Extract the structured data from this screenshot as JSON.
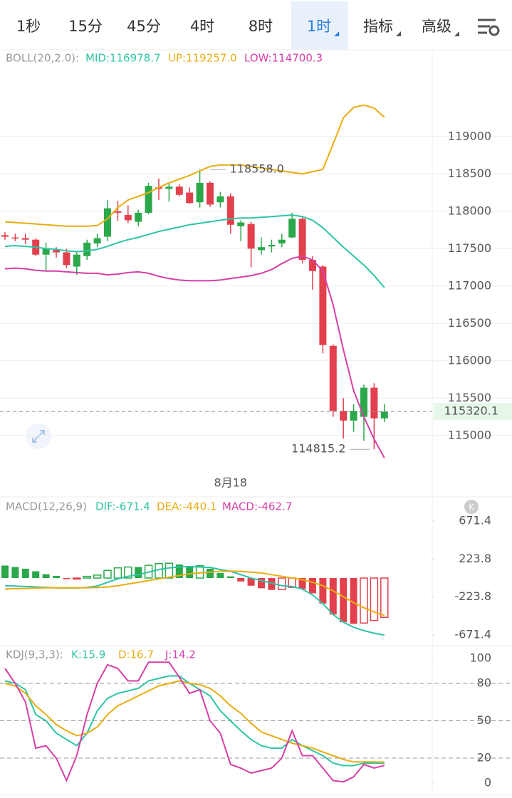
{
  "tabs": [
    {
      "label": "1秒",
      "active": false,
      "dropdown": false
    },
    {
      "label": "15分",
      "active": false,
      "dropdown": false
    },
    {
      "label": "45分",
      "active": false,
      "dropdown": false
    },
    {
      "label": "4时",
      "active": false,
      "dropdown": false
    },
    {
      "label": "8时",
      "active": false,
      "dropdown": false
    },
    {
      "label": "1时",
      "active": true,
      "dropdown": true
    },
    {
      "label": "指标",
      "active": false,
      "dropdown": true
    },
    {
      "label": "高级",
      "active": false,
      "dropdown": true
    }
  ],
  "chart_data": [
    {
      "type": "candlestick",
      "title": "BOLL(20,2.0):",
      "categories": [
        null,
        null,
        null,
        null,
        null,
        null,
        null,
        null,
        null,
        null,
        null,
        null,
        null,
        null,
        null,
        null,
        null,
        null,
        null,
        null,
        null,
        null,
        "8月18",
        null,
        null,
        null,
        null,
        null,
        null,
        null,
        null,
        null,
        null,
        null,
        null,
        null,
        null,
        null
      ],
      "open": [
        117680,
        117650,
        117640,
        117620,
        117420,
        117480,
        117450,
        117260,
        117400,
        117570,
        117660,
        118000,
        117950,
        117860,
        117980,
        118320,
        118300,
        118330,
        118250,
        118120,
        118380,
        118120,
        118200,
        117800,
        117830,
        117480,
        117530,
        117570,
        117650,
        117900,
        117350,
        117260,
        116200,
        115330,
        115200,
        115250,
        115640,
        115230
      ],
      "high": [
        117720,
        117700,
        117700,
        117640,
        117580,
        117520,
        117500,
        117450,
        117620,
        117700,
        118150,
        118140,
        118080,
        118020,
        118380,
        118440,
        118380,
        118360,
        118320,
        118558,
        118400,
        118260,
        118240,
        117880,
        117860,
        117650,
        117620,
        117700,
        117980,
        117920,
        117400,
        117280,
        116220,
        115500,
        115420,
        115680,
        115700,
        115420
      ],
      "low": [
        117620,
        117600,
        117560,
        117400,
        117200,
        117380,
        117240,
        117150,
        117350,
        117520,
        117600,
        117870,
        117840,
        117800,
        117960,
        118150,
        118130,
        118200,
        118100,
        118050,
        118060,
        118050,
        117700,
        117600,
        117250,
        117420,
        117450,
        117520,
        117640,
        117300,
        116950,
        116100,
        115250,
        114960,
        115050,
        114930,
        114815.2,
        115180
      ],
      "close": [
        117660,
        117640,
        117620,
        117420,
        117500,
        117450,
        117280,
        117420,
        117580,
        117640,
        118040,
        117980,
        117880,
        117980,
        118340,
        118300,
        118330,
        118220,
        118110,
        118380,
        118090,
        118200,
        117820,
        117850,
        117500,
        117520,
        117550,
        117620,
        117900,
        117350,
        117200,
        116210,
        115330,
        115200,
        115330,
        115640,
        115230,
        115320.1
      ],
      "up_color": "#2ba84a",
      "down_color": "#e2404d",
      "high_label": "118558.0",
      "low_label": "114815.2",
      "last_label": "115320.1",
      "series": [
        {
          "name": "MID:116978.7",
          "color": "#2ec4a5",
          "values": [
            117530,
            117540,
            117530,
            117520,
            117500,
            117490,
            117470,
            117460,
            117470,
            117490,
            117530,
            117580,
            117620,
            117650,
            117690,
            117730,
            117760,
            117790,
            117820,
            117840,
            117860,
            117880,
            117900,
            117910,
            117910,
            117920,
            117930,
            117940,
            117950,
            117930,
            117880,
            117780,
            117650,
            117520,
            117400,
            117280,
            117140,
            116978.7
          ]
        },
        {
          "name": "UP:119257.0",
          "color": "#e8ad12",
          "values": [
            117860,
            117850,
            117840,
            117830,
            117820,
            117810,
            117800,
            117800,
            117800,
            117810,
            117900,
            118050,
            118150,
            118200,
            118250,
            118320,
            118380,
            118430,
            118480,
            118540,
            118600,
            118620,
            118620,
            118620,
            118600,
            118580,
            118560,
            118540,
            118520,
            118500,
            118530,
            118560,
            118900,
            119250,
            119390,
            119420,
            119380,
            119257
          ]
        },
        {
          "name": "LOW:114700.3",
          "color": "#d63fa8",
          "values": [
            117230,
            117240,
            117230,
            117210,
            117200,
            117200,
            117190,
            117180,
            117170,
            117170,
            117150,
            117160,
            117180,
            117190,
            117170,
            117130,
            117100,
            117080,
            117070,
            117070,
            117070,
            117080,
            117100,
            117120,
            117140,
            117170,
            117220,
            117300,
            117370,
            117400,
            117350,
            117200,
            116750,
            116150,
            115600,
            115250,
            114950,
            114700.3
          ]
        }
      ],
      "ylim": [
        114560,
        120160
      ],
      "yticks": [
        115000,
        115500,
        116000,
        116500,
        117000,
        117500,
        118000,
        118500,
        119000
      ],
      "grid": true
    },
    {
      "type": "macd",
      "title": "MACD(12,26,9)",
      "histogram": {
        "name": "MACD:-462.7",
        "up_color": "#2ba84a",
        "down_color": "#e2404d",
        "values": [
          147,
          130,
          110,
          80,
          45,
          25,
          -5,
          -3,
          20,
          35,
          90,
          120,
          130,
          130,
          150,
          170,
          175,
          160,
          140,
          145,
          110,
          60,
          20,
          -40,
          -90,
          -120,
          -140,
          -135,
          -110,
          -130,
          -180,
          -300,
          -430,
          -520,
          -540,
          -530,
          -500,
          -462.7
        ]
      },
      "series": [
        {
          "name": "DIF:-671.4",
          "color": "#2ec4a5",
          "values": [
            -90,
            -95,
            -100,
            -105,
            -110,
            -115,
            -118,
            -118,
            -110,
            -95,
            -50,
            -10,
            20,
            40,
            70,
            100,
            120,
            130,
            135,
            130,
            125,
            100,
            80,
            40,
            0,
            -30,
            -60,
            -90,
            -100,
            -130,
            -200,
            -300,
            -430,
            -520,
            -580,
            -620,
            -650,
            -671.4
          ]
        },
        {
          "name": "DEA:-440.1",
          "color": "#e8ad12",
          "values": [
            -130,
            -125,
            -122,
            -118,
            -115,
            -115,
            -115,
            -115,
            -115,
            -112,
            -105,
            -90,
            -70,
            -50,
            -30,
            -10,
            10,
            30,
            50,
            60,
            70,
            80,
            80,
            80,
            70,
            60,
            40,
            20,
            0,
            -20,
            -50,
            -90,
            -150,
            -220,
            -290,
            -350,
            -400,
            -440.1
          ]
        }
      ],
      "ylim": [
        -780,
        923
      ],
      "yticks": [
        671.4,
        223.8,
        -223.8,
        -671.4
      ]
    },
    {
      "type": "line",
      "title": "KDJ(9,3,3):",
      "series": [
        {
          "name": "K:15.9",
          "color": "#2ec4a5",
          "values": [
            82,
            80,
            75,
            55,
            50,
            40,
            35,
            30,
            40,
            58,
            68,
            72,
            74,
            76,
            82,
            84,
            86,
            86,
            80,
            75,
            70,
            58,
            50,
            42,
            35,
            30,
            28,
            28,
            35,
            30,
            26,
            22,
            16,
            14,
            14,
            16,
            16,
            15.9
          ]
        },
        {
          "name": "D:16.7",
          "color": "#e8ad12",
          "values": [
            80,
            78,
            72,
            62,
            55,
            47,
            42,
            38,
            40,
            45,
            55,
            62,
            66,
            70,
            74,
            78,
            80,
            82,
            80,
            79,
            76,
            70,
            62,
            56,
            48,
            41,
            38,
            35,
            32,
            30,
            28,
            25,
            22,
            19,
            17,
            17,
            17,
            16.7
          ]
        },
        {
          "name": "J:14.2",
          "color": "#d63fa8",
          "values": [
            92,
            80,
            65,
            28,
            30,
            20,
            2,
            22,
            55,
            80,
            95,
            92,
            82,
            82,
            97,
            97,
            97,
            85,
            72,
            75,
            50,
            40,
            15,
            12,
            8,
            10,
            12,
            20,
            42,
            22,
            22,
            12,
            2,
            1,
            5,
            15,
            12,
            14.2
          ]
        }
      ],
      "ylim": [
        -9.7,
        108.6
      ],
      "yticks": [
        100,
        80,
        50,
        20,
        0
      ]
    }
  ]
}
